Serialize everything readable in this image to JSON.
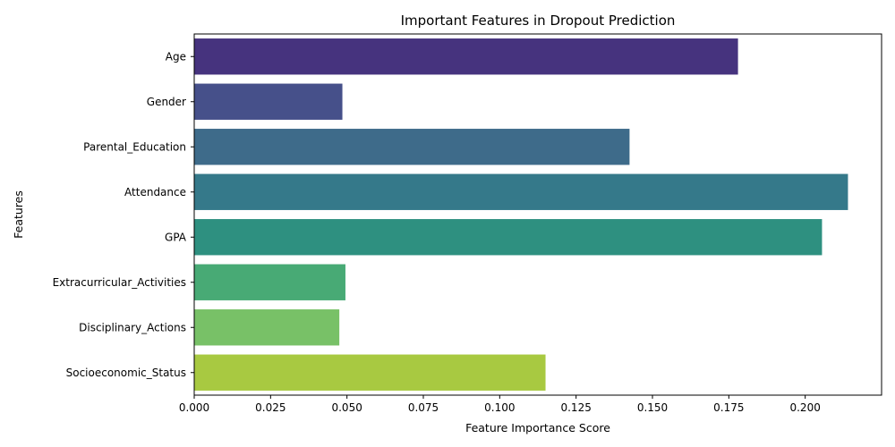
{
  "chart_data": {
    "type": "bar",
    "orientation": "horizontal",
    "title": "Important Features in Dropout Prediction",
    "xlabel": "Feature Importance Score",
    "ylabel": "Features",
    "categories": [
      "Age",
      "Gender",
      "Parental_Education",
      "Attendance",
      "GPA",
      "Extracurricular_Activities",
      "Disciplinary_Actions",
      "Socioeconomic_Status"
    ],
    "values": [
      0.178,
      0.0485,
      0.1425,
      0.214,
      0.2055,
      0.0495,
      0.0475,
      0.115
    ],
    "colors": [
      "#46337e",
      "#46508a",
      "#3e6b8a",
      "#35798a",
      "#2e9080",
      "#48aa75",
      "#78c167",
      "#a8c941"
    ],
    "xlim": [
      0,
      0.225
    ],
    "xticks": [
      "0.000",
      "0.025",
      "0.050",
      "0.075",
      "0.100",
      "0.125",
      "0.150",
      "0.175",
      "0.200"
    ],
    "grid": false,
    "legend": "none"
  }
}
